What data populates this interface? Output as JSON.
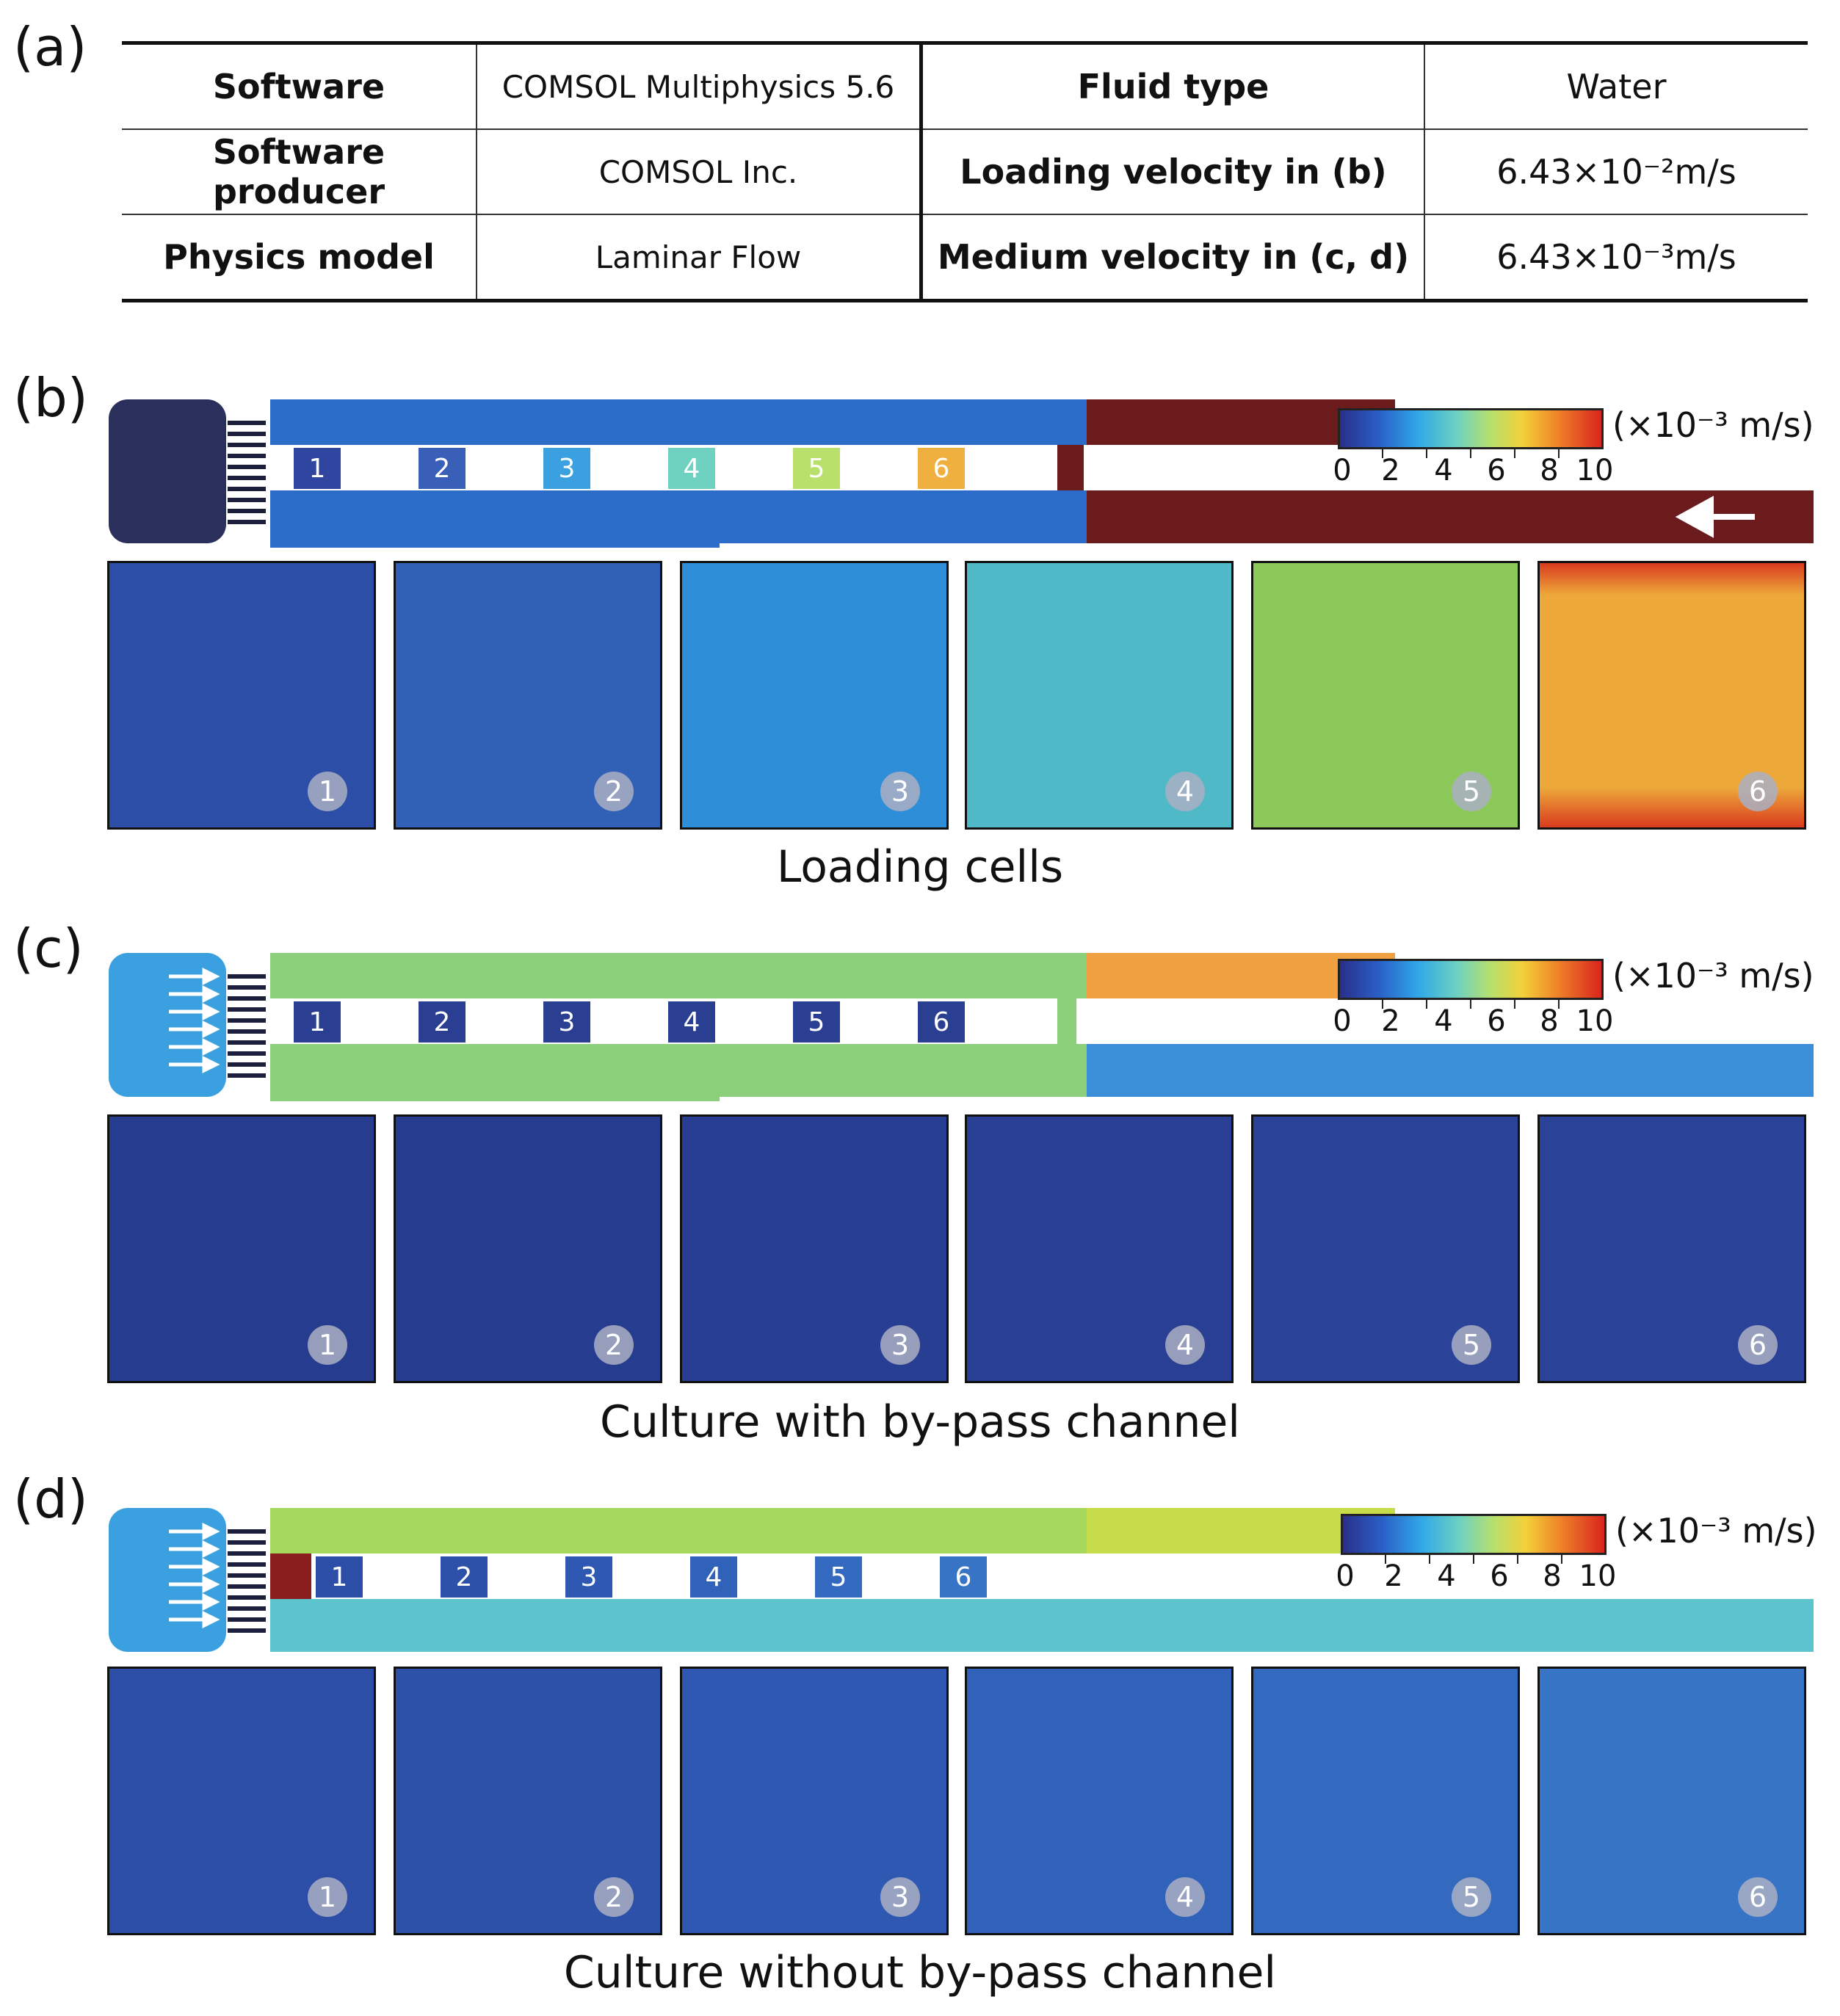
{
  "panels": {
    "a": "(a)",
    "b": "(b)",
    "c": "(c)",
    "d": "(d)"
  },
  "table": {
    "rows": [
      [
        "Software",
        "COMSOL Multiphysics 5.6",
        "Fluid type",
        "Water"
      ],
      [
        "Software producer",
        "COMSOL Inc.",
        "Loading velocity in (b)",
        "6.43×10⁻²m/s"
      ],
      [
        "Physics model",
        "Laminar Flow",
        "Medium velocity in (c, d)",
        "6.43×10⁻³m/s"
      ]
    ]
  },
  "colorbar": {
    "unit": "(×10⁻³ m/s)",
    "ticks": [
      "0",
      "2",
      "4",
      "6",
      "8",
      "10"
    ],
    "colors": [
      "#2a2f8a",
      "#2a5fc8",
      "#30a8e8",
      "#6fd2c0",
      "#b8e06a",
      "#f3d03a",
      "#f08a2a",
      "#d9241e"
    ]
  },
  "chambers": [
    "1",
    "2",
    "3",
    "4",
    "5",
    "6"
  ],
  "captions": {
    "b": "Loading cells",
    "c": "Culture with by-pass channel",
    "d": "Culture without by-pass channel"
  },
  "zoom_colors": {
    "b": [
      "#2d4ea6",
      "#3161b6",
      "#2e8fd8",
      "#4fb9c8",
      "#8cc85a",
      "#eda83a"
    ],
    "c": [
      "#263c8e",
      "#263c8e",
      "#273e92",
      "#283f94",
      "#2a4398",
      "#2a4398"
    ],
    "d": [
      "#2d4ea6",
      "#2d50a8",
      "#2f58b2",
      "#3162ba",
      "#336aBF",
      "#3774c6"
    ]
  }
}
